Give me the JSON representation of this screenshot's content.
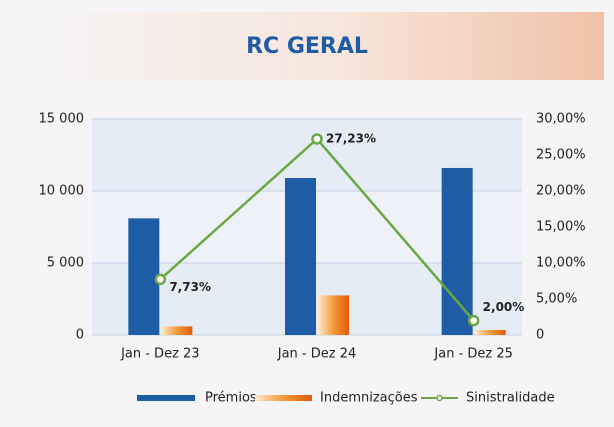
{
  "chart_data": {
    "type": "bar_line",
    "title": "RC GERAL",
    "categories": [
      "Jan - Dez 23",
      "Jan - Dez 24",
      "Jan - Dez 25"
    ],
    "series": [
      {
        "name": "Prémios",
        "color": "#1f5ca6",
        "values": [
          8100,
          10900,
          11600
        ]
      },
      {
        "name": "Indemnizações",
        "color": "#ef7d1f",
        "values": [
          600,
          2750,
          350
        ]
      },
      {
        "name": "Sinistralidade",
        "color": "#6aa842",
        "axis": "y2",
        "values": [
          7.73,
          27.23,
          2.0
        ],
        "value_labels": [
          "7,73%",
          "27,23%",
          "2,00%"
        ]
      }
    ],
    "ylim": [
      0,
      15000
    ],
    "yticks": [
      0,
      {
        "value": 5000,
        "label": "5 000"
      },
      {
        "value": 10000,
        "label": "10 000"
      },
      {
        "value": 15000,
        "label": "15 000"
      }
    ],
    "y2lim": [
      0,
      30
    ],
    "y2ticks": [
      0,
      {
        "value": 5,
        "label": "5,00%"
      },
      {
        "value": 10,
        "label": "10,00%"
      },
      {
        "value": 15,
        "label": "15,00%"
      },
      {
        "value": 20,
        "label": "20,00%"
      },
      {
        "value": 25,
        "label": "25,00%"
      },
      {
        "value": 30,
        "label": "30,00%"
      }
    ],
    "grid": true
  }
}
